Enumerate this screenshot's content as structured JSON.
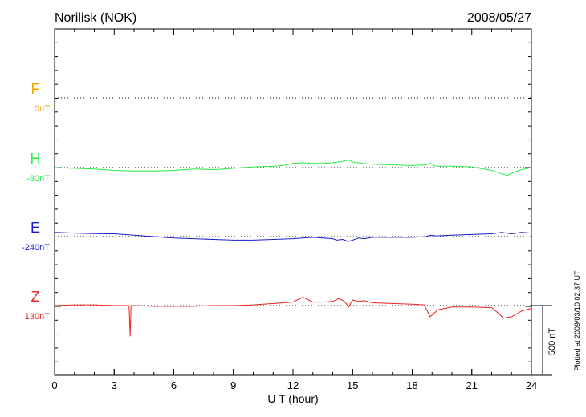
{
  "header": {
    "station": "Norilisk (NOK)",
    "date": "2008/05/27"
  },
  "footer": {
    "plotted_at": "Plotted at 2009/03/10 02:37 UT"
  },
  "chart_data": {
    "type": "line",
    "xlabel": "U T (hour)",
    "xlim": [
      0,
      24
    ],
    "xticks": [
      "0",
      "3",
      "6",
      "9",
      "12",
      "15",
      "18",
      "21",
      "24"
    ],
    "scale_bar_label": "500 nT",
    "grid": "dotted baselines",
    "colors": {
      "F": "#f5a500",
      "H": "#22ee44",
      "E": "#1a1acc",
      "Z": "#ee2222"
    },
    "series": [
      {
        "name": "F",
        "baseline": "0nT",
        "x": [],
        "y": []
      },
      {
        "name": "H",
        "baseline": "-80nT",
        "x": [
          0,
          1,
          2,
          3,
          4,
          5,
          6,
          7,
          8,
          9,
          10,
          11,
          11.5,
          12,
          12.5,
          13,
          13.5,
          14,
          14.5,
          14.8,
          15,
          15.5,
          16,
          17,
          18,
          18.7,
          18.9,
          19.2,
          20,
          21,
          22,
          22.5,
          22.8,
          23,
          23.5,
          24
        ],
        "y": [
          0,
          -5,
          -10,
          -20,
          -25,
          -25,
          -20,
          -10,
          -15,
          -5,
          5,
          10,
          15,
          30,
          35,
          30,
          30,
          35,
          45,
          55,
          40,
          30,
          25,
          20,
          15,
          20,
          30,
          10,
          10,
          5,
          -20,
          -45,
          -55,
          -40,
          -15,
          0
        ]
      },
      {
        "name": "E",
        "baseline": "-240nT",
        "x": [
          0,
          1,
          2,
          3,
          4,
          5,
          6,
          7,
          8,
          9,
          10,
          11,
          12,
          12.5,
          13,
          13.5,
          14,
          14.2,
          14.5,
          14.8,
          15,
          15.3,
          15.6,
          16,
          17,
          18,
          18.7,
          18.9,
          19.2,
          20,
          21,
          22,
          22.5,
          23,
          23.5,
          24
        ],
        "y": [
          30,
          25,
          22,
          20,
          10,
          0,
          -10,
          -15,
          -20,
          -25,
          -25,
          -20,
          -15,
          -10,
          -5,
          -10,
          -15,
          -25,
          -20,
          -35,
          -25,
          -10,
          -15,
          -5,
          -5,
          -5,
          0,
          10,
          5,
          10,
          15,
          20,
          30,
          20,
          30,
          25
        ]
      },
      {
        "name": "Z",
        "baseline": "130nT",
        "x": [
          0,
          1,
          2,
          3,
          3.75,
          3.8,
          3.85,
          4,
          5,
          6,
          7,
          8,
          9,
          10,
          11,
          12,
          12.5,
          13,
          13.5,
          14,
          14.3,
          14.6,
          14.8,
          15,
          15.3,
          15.6,
          16,
          17,
          18,
          18.6,
          18.9,
          19.3,
          20,
          21,
          22,
          22.3,
          22.6,
          23,
          23.5,
          24
        ],
        "y": [
          0,
          5,
          5,
          0,
          0,
          -220,
          0,
          0,
          -5,
          -5,
          -5,
          0,
          0,
          5,
          15,
          25,
          60,
          25,
          25,
          30,
          50,
          30,
          -10,
          40,
          30,
          35,
          20,
          15,
          10,
          5,
          -80,
          -30,
          -10,
          -10,
          -15,
          -50,
          -90,
          -80,
          -40,
          -20
        ]
      }
    ]
  }
}
